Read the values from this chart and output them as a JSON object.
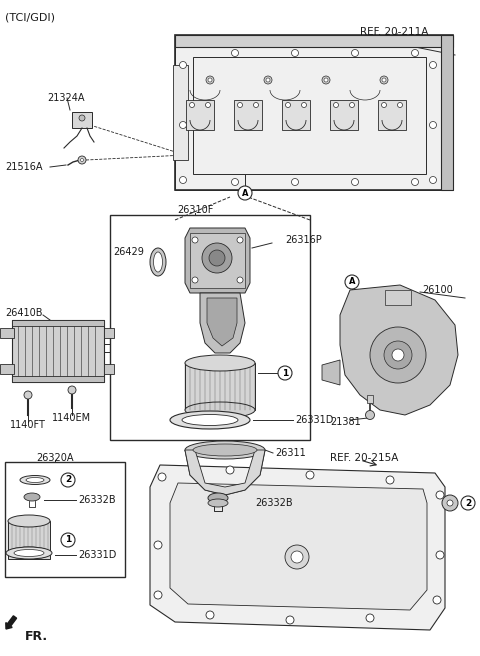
{
  "title": "(TCI/GDI)",
  "bg_color": "#ffffff",
  "lc": "#2a2a2a",
  "tc": "#1a1a1a",
  "labels": {
    "ref_211A": "REF. 20-211A",
    "ref_215A": "REF. 20-215A",
    "p21324A": "21324A",
    "p21516A": "21516A",
    "p26310F": "26310F",
    "p26316P": "26316P",
    "p26429": "26429",
    "p26410B": "26410B",
    "p1140FT": "1140FT",
    "p1140EM": "1140EM",
    "p26331D": "26331D",
    "p26311": "26311",
    "p26332B": "26332B",
    "p26100": "26100",
    "p21381": "21381",
    "p26320A": "26320A",
    "p26332B2": "26332B",
    "p26331D2": "26331D",
    "fr": "FR."
  }
}
